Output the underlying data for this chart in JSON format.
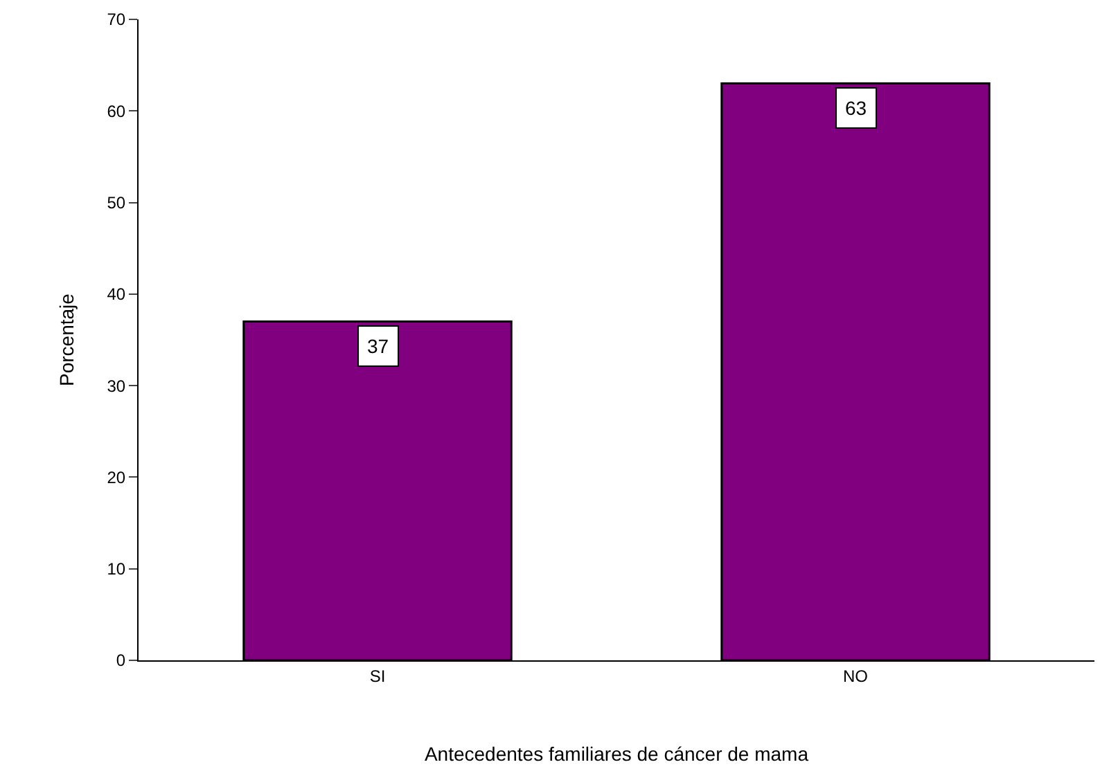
{
  "chart_data": {
    "type": "bar",
    "categories": [
      "SI",
      "NO"
    ],
    "values": [
      37,
      63
    ],
    "color": "#800080",
    "ylim": [
      0,
      70
    ],
    "yticks": [
      0,
      10,
      20,
      30,
      40,
      50,
      60,
      70
    ],
    "xlabel": "Antecedentes familiares de cáncer de mama",
    "ylabel": "Porcentaje",
    "data_labels": true
  }
}
